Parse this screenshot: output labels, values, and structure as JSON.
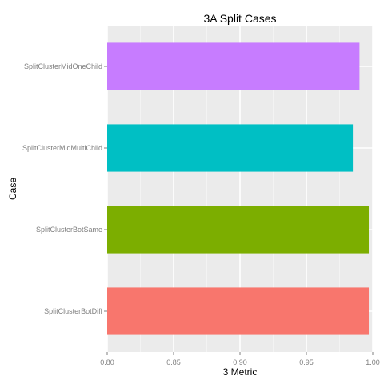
{
  "chart_data": {
    "type": "bar",
    "orientation": "horizontal",
    "title": "3A Split Cases",
    "xlabel": "3 Metric",
    "ylabel": "Case",
    "xlim": [
      0.8,
      1.0
    ],
    "x_ticks": [
      "0.80",
      "0.85",
      "0.90",
      "0.95",
      "1.00"
    ],
    "grid": true,
    "categories": [
      "SplitClusterMidOneChild",
      "SplitClusterMidMultiChild",
      "SplitClusterBotSame",
      "SplitClusterBotDiff"
    ],
    "values": [
      0.99,
      0.985,
      0.997,
      0.997
    ],
    "colors": [
      "#C77CFF",
      "#00BFC4",
      "#7CAE00",
      "#F8766D"
    ],
    "background": "#EBEBEB",
    "gridline_color": "#FFFFFF"
  }
}
